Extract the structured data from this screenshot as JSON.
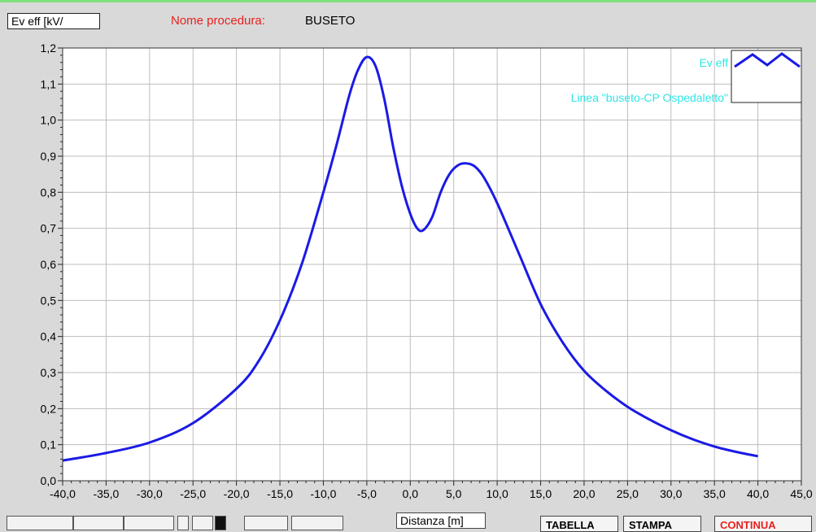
{
  "header": {
    "y_unit_box": "Ev eff [kV/",
    "procedure_label": "Nome procedura:",
    "procedure_name": "BUSETO"
  },
  "footer": {
    "x_axis_box": "Distanza [m]",
    "buttons": [
      "TABELLA",
      "STAMPA",
      "CONTINUA"
    ]
  },
  "colors": {
    "line": "#1a1ae6",
    "legend_text": "#2ee6e6",
    "grid": "#bdbdbd",
    "plot_bg": "#ffffff",
    "window_bg": "#d9d9d9",
    "procedure_label": "#e8201e"
  },
  "chart_data": {
    "type": "line",
    "xlim": [
      -40,
      45
    ],
    "ylim": [
      0,
      1.2
    ],
    "xticks": [
      "-40,0",
      "-35,0",
      "-30,0",
      "-25,0",
      "-20,0",
      "-15,0",
      "-10,0",
      "-5,0",
      "0,0",
      "5,0",
      "10,0",
      "15,0",
      "20,0",
      "25,0",
      "30,0",
      "35,0",
      "40,0",
      "45,0"
    ],
    "yticks": [
      "0,0",
      "0,1",
      "0,2",
      "0,3",
      "0,4",
      "0,5",
      "0,6",
      "0,7",
      "0,8",
      "0,9",
      "1,0",
      "1,1",
      "1,2"
    ],
    "grid": true,
    "legend": {
      "placement": "top-right",
      "entries": [
        "Ev eff",
        "Linea \"buseto-CP Ospedaletto\""
      ]
    },
    "series": [
      {
        "name": "Ev eff",
        "x": [
          -40,
          -35,
          -30,
          -25,
          -20,
          -17.5,
          -15,
          -12.5,
          -10,
          -8.5,
          -7,
          -6,
          -5,
          -4,
          -3,
          -2,
          -1,
          0,
          0.8,
          1.5,
          2.5,
          3.5,
          4.5,
          5.5,
          6.5,
          7.5,
          8.5,
          10,
          12.5,
          15,
          17.5,
          20,
          22.5,
          25,
          27.5,
          30,
          32.5,
          35,
          37.5,
          40
        ],
        "y": [
          0.056,
          0.077,
          0.106,
          0.16,
          0.255,
          0.33,
          0.445,
          0.6,
          0.8,
          0.93,
          1.07,
          1.14,
          1.175,
          1.15,
          1.06,
          0.93,
          0.82,
          0.74,
          0.7,
          0.695,
          0.73,
          0.8,
          0.85,
          0.875,
          0.88,
          0.87,
          0.84,
          0.77,
          0.63,
          0.49,
          0.385,
          0.305,
          0.25,
          0.205,
          0.17,
          0.14,
          0.115,
          0.095,
          0.08,
          0.068
        ]
      }
    ]
  }
}
